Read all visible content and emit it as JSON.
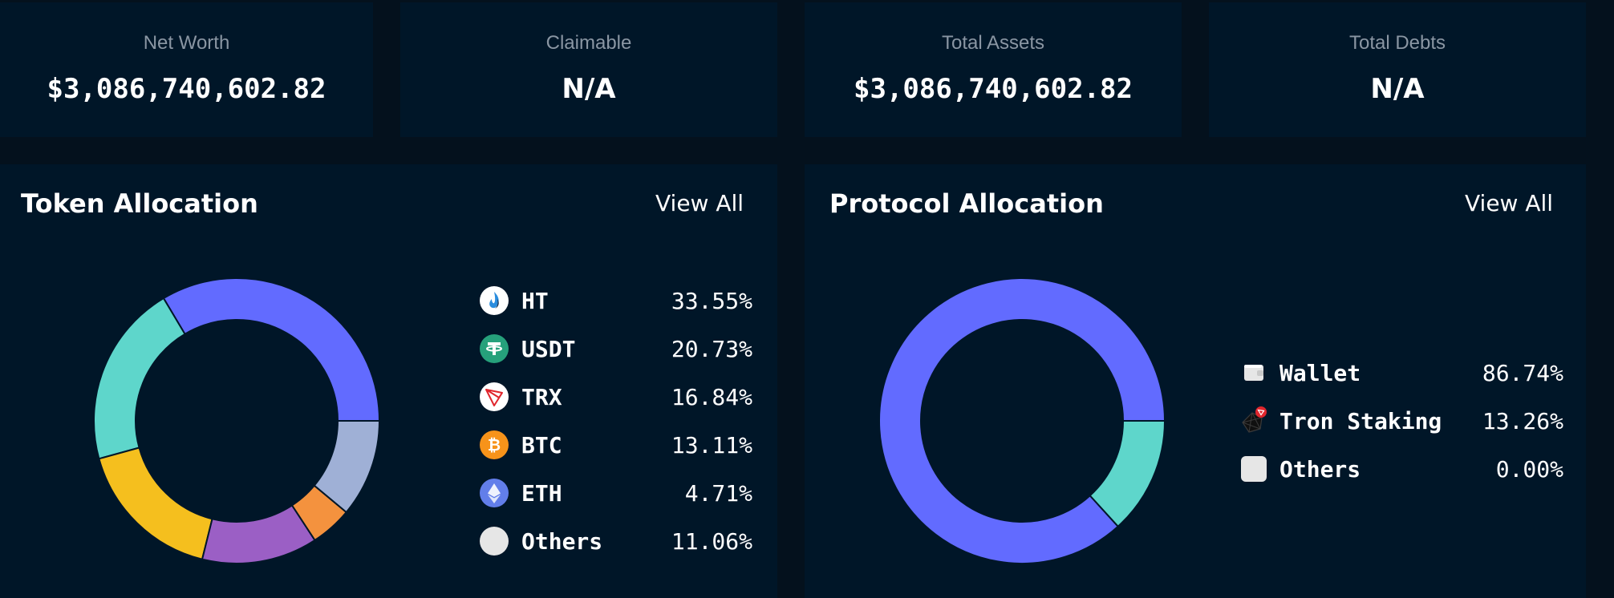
{
  "stats": [
    {
      "label": "Net Worth",
      "value": "$3,086,740,602.82"
    },
    {
      "label": "Claimable",
      "value": "N/A"
    },
    {
      "label": "Total Assets",
      "value": "$3,086,740,602.82"
    },
    {
      "label": "Total Debts",
      "value": "N/A"
    }
  ],
  "token_allocation": {
    "title": "Token Allocation",
    "view_all": "View All",
    "items": [
      {
        "name": "HT",
        "pct": "33.55%",
        "icon": "ht-icon"
      },
      {
        "name": "USDT",
        "pct": "20.73%",
        "icon": "usdt-icon"
      },
      {
        "name": "TRX",
        "pct": "16.84%",
        "icon": "trx-icon"
      },
      {
        "name": "BTC",
        "pct": "13.11%",
        "icon": "btc-icon"
      },
      {
        "name": "ETH",
        "pct": "4.71%",
        "icon": "eth-icon"
      },
      {
        "name": "Others",
        "pct": "11.06%",
        "icon": "others-icon"
      }
    ]
  },
  "protocol_allocation": {
    "title": "Protocol Allocation",
    "view_all": "View All",
    "items": [
      {
        "name": "Wallet",
        "pct": "86.74%",
        "icon": "wallet-icon"
      },
      {
        "name": "Tron Staking",
        "pct": "13.26%",
        "icon": "tron-staking-icon"
      },
      {
        "name": "Others",
        "pct": "0.00%",
        "icon": "others-icon"
      }
    ]
  },
  "chart_data": [
    {
      "type": "pie",
      "title": "Token Allocation",
      "categories": [
        "HT",
        "USDT",
        "TRX",
        "BTC",
        "ETH",
        "Others"
      ],
      "values": [
        33.55,
        20.73,
        16.84,
        13.11,
        4.71,
        11.06
      ],
      "colors": [
        "#626bff",
        "#5ed6cb",
        "#f5bf1e",
        "#9b5fc5",
        "#f4923e",
        "#9fb0d6"
      ],
      "donut": true
    },
    {
      "type": "pie",
      "title": "Protocol Allocation",
      "categories": [
        "Wallet",
        "Tron Staking",
        "Others"
      ],
      "values": [
        86.74,
        13.26,
        0.0
      ],
      "colors": [
        "#626bff",
        "#5ed6cb",
        "#9fb0d6"
      ],
      "donut": true
    }
  ]
}
